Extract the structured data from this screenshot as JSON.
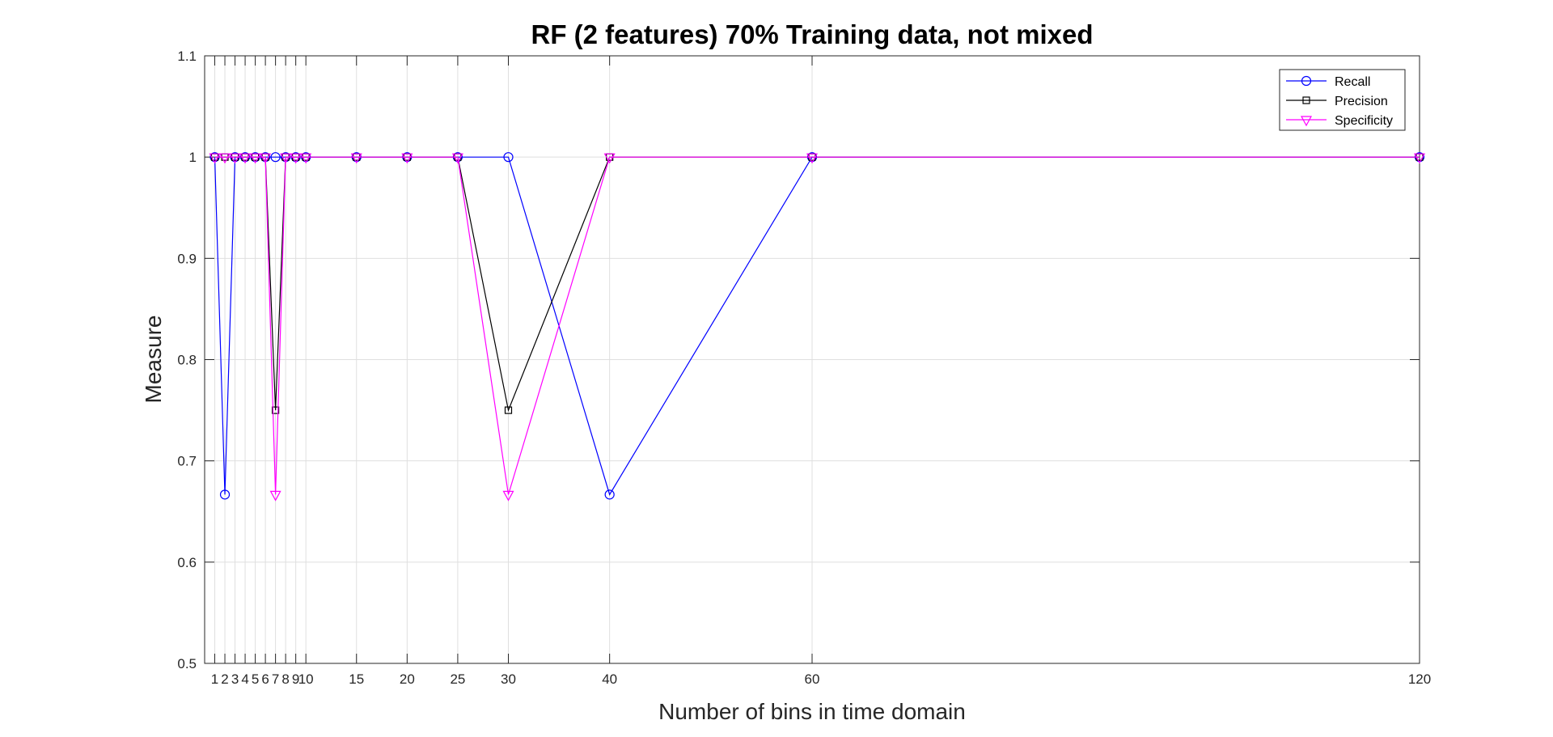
{
  "chart_data": {
    "type": "line",
    "title": "RF (2 features) 70% Training data, not mixed",
    "xlabel": "Number of bins in time domain",
    "ylabel": "Measure",
    "x": [
      1,
      2,
      3,
      4,
      5,
      6,
      7,
      8,
      9,
      10,
      15,
      20,
      25,
      30,
      40,
      60,
      120
    ],
    "xticks": [
      1,
      2,
      3,
      4,
      5,
      6,
      7,
      8,
      9,
      10,
      15,
      20,
      25,
      30,
      40,
      60,
      120
    ],
    "xlim": [
      0,
      120
    ],
    "ylim": [
      0.5,
      1.1
    ],
    "yticks": [
      0.5,
      0.6,
      0.7,
      0.8,
      0.9,
      1,
      1.1
    ],
    "grid": true,
    "legend_position": "top-right",
    "series": [
      {
        "name": "Recall",
        "color": "#0000ff",
        "marker": "circle",
        "values": [
          1,
          0.6667,
          1,
          1,
          1,
          1,
          1,
          1,
          1,
          1,
          1,
          1,
          1,
          1,
          0.6667,
          1,
          1
        ]
      },
      {
        "name": "Precision",
        "color": "#000000",
        "marker": "square",
        "values": [
          1,
          1,
          1,
          1,
          1,
          1,
          0.75,
          1,
          1,
          1,
          1,
          1,
          1,
          0.75,
          1,
          1,
          1
        ]
      },
      {
        "name": "Specificity",
        "color": "#ff00ff",
        "marker": "triangle-down",
        "values": [
          1,
          1,
          1,
          1,
          1,
          1,
          0.6667,
          1,
          1,
          1,
          1,
          1,
          1,
          0.6667,
          1,
          1,
          1
        ]
      }
    ]
  }
}
